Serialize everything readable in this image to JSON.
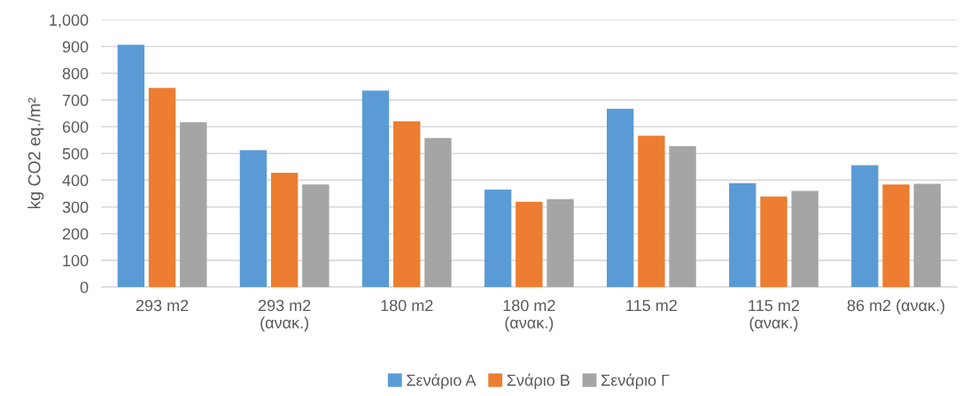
{
  "chart_data": {
    "type": "bar",
    "ylabel": "kg CO2 eq./m²",
    "categories": [
      "293 m2",
      "293 m2\n(ανακ.)",
      "180 m2",
      "180 m2\n(ανακ.)",
      "115 m2",
      "115 m2\n(ανακ.)",
      "86 m2 (ανακ.)"
    ],
    "series": [
      {
        "name": "Σενάριο Α",
        "color": "#5b9bd5",
        "values": [
          907,
          512,
          735,
          365,
          667,
          389,
          456
        ]
      },
      {
        "name": "Σνάριο Β",
        "color": "#ed7d31",
        "values": [
          745,
          428,
          620,
          319,
          566,
          339,
          384
        ]
      },
      {
        "name": "Σενάριο Γ",
        "color": "#a5a5a5",
        "values": [
          617,
          384,
          558,
          329,
          527,
          360,
          386
        ]
      }
    ],
    "ylim": [
      0,
      1000
    ],
    "yticks": [
      0,
      100,
      200,
      300,
      400,
      500,
      600,
      700,
      800,
      900,
      {
        "value": 1000,
        "label": "1,000"
      }
    ],
    "grid": "y",
    "legend": "bottom"
  }
}
